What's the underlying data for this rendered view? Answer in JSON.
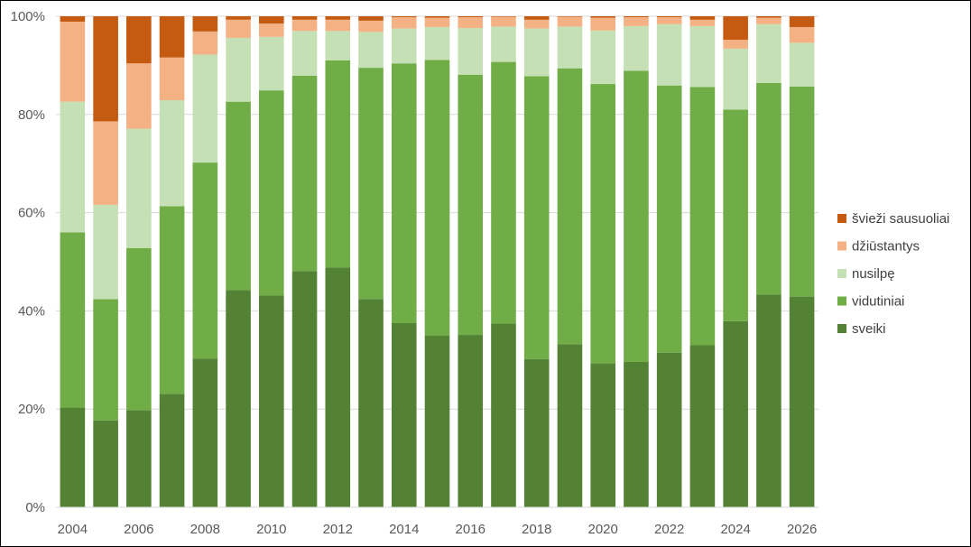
{
  "chart_data": {
    "type": "bar",
    "stacked": true,
    "percent_stacked": true,
    "title": "",
    "xlabel": "",
    "ylabel": "",
    "ylim": [
      0,
      100
    ],
    "y_ticks": [
      "0%",
      "20%",
      "40%",
      "60%",
      "80%",
      "100%"
    ],
    "x_tick_labels": [
      "2004",
      "2006",
      "2008",
      "2010",
      "2012",
      "2014",
      "2016",
      "2018",
      "2020",
      "2022",
      "2024",
      "2026"
    ],
    "grid": true,
    "legend_position": "right",
    "categories": [
      "2004",
      "2005",
      "2006",
      "2007",
      "2008",
      "2009",
      "2010",
      "2011",
      "2012",
      "2013",
      "2014",
      "2015",
      "2016",
      "2017",
      "2018",
      "2019",
      "2020",
      "2021",
      "2022",
      "2023",
      "2024",
      "2025",
      "2026"
    ],
    "series": [
      {
        "name": "sveiki",
        "color": "#548235",
        "values": [
          20.3,
          17.7,
          19.8,
          23.1,
          30.3,
          44.2,
          43.1,
          48.1,
          48.8,
          42.4,
          37.5,
          35.0,
          35.1,
          37.4,
          30.2,
          33.2,
          29.3,
          29.6,
          31.5,
          33.0,
          37.9,
          43.3,
          42.9
        ]
      },
      {
        "name": "vidutiniai",
        "color": "#70AD47",
        "values": [
          35.7,
          24.7,
          33.0,
          38.2,
          39.9,
          38.4,
          41.8,
          39.8,
          42.2,
          47.1,
          52.9,
          56.1,
          53.0,
          53.3,
          57.6,
          56.2,
          56.9,
          59.3,
          54.4,
          52.6,
          43.1,
          43.1,
          42.8
        ]
      },
      {
        "name": "nusilpę",
        "color": "#C5E0B4",
        "values": [
          26.6,
          19.2,
          24.3,
          21.6,
          22.0,
          13.0,
          10.9,
          9.1,
          6.0,
          7.3,
          7.1,
          6.7,
          9.5,
          7.2,
          9.7,
          8.5,
          10.9,
          9.1,
          12.5,
          12.4,
          12.4,
          12.0,
          8.9
        ]
      },
      {
        "name": "džiūstantys",
        "color": "#F4B183",
        "values": [
          16.3,
          17.0,
          13.3,
          8.7,
          4.7,
          3.7,
          2.7,
          2.3,
          2.3,
          2.3,
          2.3,
          1.9,
          2.2,
          2.0,
          1.8,
          2.0,
          2.6,
          1.8,
          1.4,
          1.3,
          1.8,
          1.3,
          3.2
        ]
      },
      {
        "name": "švieži sausuoliai",
        "color": "#C55A11",
        "values": [
          1.1,
          21.4,
          9.6,
          8.4,
          3.1,
          0.7,
          1.5,
          0.7,
          0.7,
          0.9,
          0.2,
          0.3,
          0.2,
          0.1,
          0.7,
          0.1,
          0.3,
          0.2,
          0.2,
          0.7,
          4.8,
          0.3,
          2.2
        ]
      }
    ]
  }
}
